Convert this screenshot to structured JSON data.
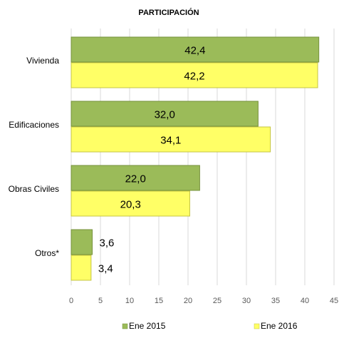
{
  "chart_data": {
    "type": "bar",
    "orientation": "horizontal",
    "title": "PARTICIPACIÓN",
    "categories": [
      "Vivienda",
      "Edificaciones",
      "Obras Civiles",
      "Otros*"
    ],
    "series": [
      {
        "name": "Ene 2015",
        "values": [
          42.4,
          32.0,
          22.0,
          3.6
        ],
        "labels": [
          "42,4",
          "32,0",
          "22,0",
          "3,6"
        ],
        "color": "#9bbb59",
        "border_color": "#76923c"
      },
      {
        "name": "Ene 2016",
        "values": [
          42.2,
          34.1,
          20.3,
          3.4
        ],
        "labels": [
          "42,2",
          "34,1",
          "20,3",
          "3,4"
        ],
        "color": "#ffff66",
        "border_color": "#c4c444"
      }
    ],
    "x_ticks": [
      "0",
      "5",
      "10",
      "15",
      "20",
      "25",
      "30",
      "35",
      "40",
      "45"
    ],
    "xlim": [
      0,
      45
    ],
    "grid": true,
    "legend_position": "bottom"
  }
}
